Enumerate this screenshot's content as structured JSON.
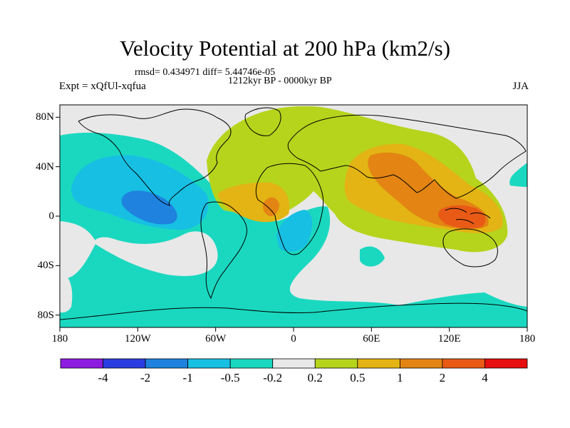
{
  "title": "Velocity Potential at 200 hPa (km2/s)",
  "stats_line": "rmsd= 0.434971 diff= 5.44746e-05",
  "period": "1212kyr BP - 0000kyr BP",
  "experiment": "Expt = xQfUl-xqfua",
  "season": "JJA",
  "map": {
    "lon_range": [
      -180,
      180
    ],
    "lat_range": [
      -90,
      90
    ],
    "y_ticks": [
      {
        "lat": 80,
        "label": "80N"
      },
      {
        "lat": 40,
        "label": "40N"
      },
      {
        "lat": 0,
        "label": "0"
      },
      {
        "lat": -40,
        "label": "40S"
      },
      {
        "lat": -80,
        "label": "80S"
      }
    ],
    "x_ticks": [
      {
        "lon": -180,
        "label": "180"
      },
      {
        "lon": -120,
        "label": "120W"
      },
      {
        "lon": -60,
        "label": "60W"
      },
      {
        "lon": 0,
        "label": "0"
      },
      {
        "lon": 60,
        "label": "60E"
      },
      {
        "lon": 120,
        "label": "120E"
      },
      {
        "lon": 180,
        "label": "180"
      }
    ]
  },
  "colorbar": {
    "colors": [
      "#8c1ce0",
      "#2a3de0",
      "#1e82de",
      "#17bfe3",
      "#1ad8c0",
      "#e8e8e8",
      "#b6d41c",
      "#e3b413",
      "#e38413",
      "#e85a16",
      "#e60e0e"
    ],
    "labels": [
      "-4",
      "-2",
      "-1",
      "-0.5",
      "-0.2",
      "0.2",
      "0.5",
      "1",
      "2",
      "4"
    ]
  },
  "chart_data": {
    "type": "heatmap",
    "title": "Velocity Potential at 200 hPa (km2/s)",
    "subtitle": "1212kyr BP - 0000kyr BP",
    "variable_units": "km2/s",
    "levels": [
      -4,
      -2,
      -1,
      -0.5,
      -0.2,
      0.2,
      0.5,
      1,
      2,
      4
    ],
    "xlim": [
      -180,
      180
    ],
    "ylim": [
      -90,
      90
    ],
    "features": [
      {
        "name": "central-pacific-minimum",
        "lon": -140,
        "lat": 2,
        "value_range": "-2 to -1"
      },
      {
        "name": "south-atlantic-minimum",
        "lon": 5,
        "lat": -20,
        "value_range": "-1 to -0.5"
      },
      {
        "name": "maritime-continent-maximum",
        "lon": 140,
        "lat": -5,
        "value_range": "2 to 4"
      },
      {
        "name": "west-africa-maximum",
        "lon": -15,
        "lat": 3,
        "value_range": "1 to 2"
      },
      {
        "name": "arabia-india-maximum",
        "lon": 75,
        "lat": 25,
        "value_range": "1 to 2"
      }
    ]
  }
}
